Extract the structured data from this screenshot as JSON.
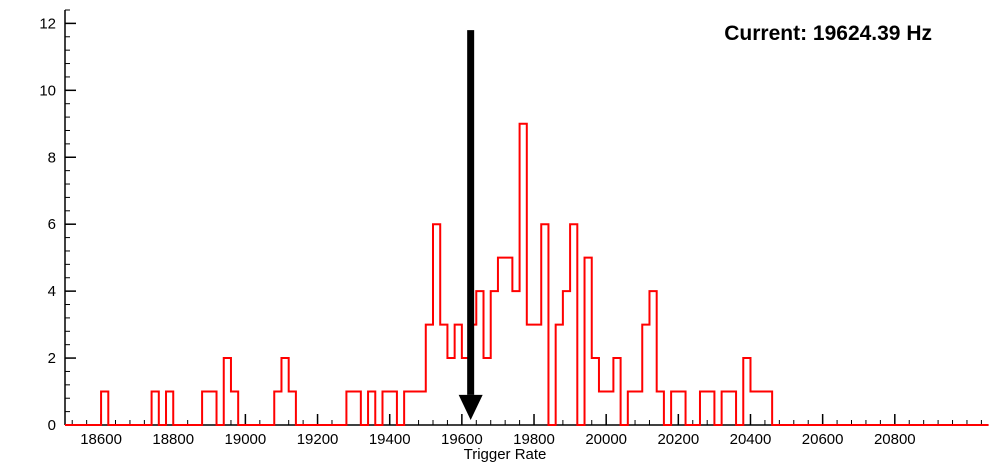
{
  "annotation": {
    "text": "Current: 19624.39 Hz"
  },
  "chart_data": {
    "type": "bar",
    "subtype": "step-histogram",
    "title": "",
    "xlabel": "Trigger Rate",
    "ylabel": "",
    "x_range": [
      18500,
      21050
    ],
    "y_range": [
      0,
      12.4
    ],
    "x_major_ticks": [
      18600,
      18800,
      19000,
      19200,
      19400,
      19600,
      19800,
      20000,
      20200,
      20400,
      20600,
      20800
    ],
    "x_minor_step": 40,
    "y_major_ticks": [
      0,
      2,
      4,
      6,
      8,
      10,
      12
    ],
    "y_minor_step": 0.4,
    "grid": "off",
    "legend": "none",
    "bin_width": 20,
    "bins": [
      [
        18600,
        1
      ],
      [
        18740,
        1
      ],
      [
        18780,
        1
      ],
      [
        18880,
        1
      ],
      [
        18900,
        1
      ],
      [
        18940,
        2
      ],
      [
        18960,
        1
      ],
      [
        19080,
        1
      ],
      [
        19100,
        2
      ],
      [
        19120,
        1
      ],
      [
        19280,
        1
      ],
      [
        19300,
        1
      ],
      [
        19340,
        1
      ],
      [
        19380,
        1
      ],
      [
        19400,
        1
      ],
      [
        19440,
        1
      ],
      [
        19460,
        1
      ],
      [
        19480,
        1
      ],
      [
        19500,
        3
      ],
      [
        19520,
        6
      ],
      [
        19540,
        3
      ],
      [
        19560,
        2
      ],
      [
        19580,
        3
      ],
      [
        19600,
        2
      ],
      [
        19620,
        3
      ],
      [
        19640,
        4
      ],
      [
        19660,
        2
      ],
      [
        19680,
        4
      ],
      [
        19700,
        5
      ],
      [
        19720,
        5
      ],
      [
        19740,
        4
      ],
      [
        19760,
        9
      ],
      [
        19780,
        3
      ],
      [
        19800,
        3
      ],
      [
        19820,
        6
      ],
      [
        19860,
        3
      ],
      [
        19880,
        4
      ],
      [
        19900,
        6
      ],
      [
        19940,
        5
      ],
      [
        19960,
        2
      ],
      [
        19980,
        1
      ],
      [
        20000,
        1
      ],
      [
        20020,
        2
      ],
      [
        20060,
        1
      ],
      [
        20080,
        1
      ],
      [
        20100,
        3
      ],
      [
        20120,
        4
      ],
      [
        20140,
        1
      ],
      [
        20180,
        1
      ],
      [
        20200,
        1
      ],
      [
        20260,
        1
      ],
      [
        20280,
        1
      ],
      [
        20320,
        1
      ],
      [
        20340,
        1
      ],
      [
        20380,
        2
      ],
      [
        20400,
        1
      ],
      [
        20420,
        1
      ],
      [
        20440,
        1
      ]
    ],
    "line_color": "#ff0000",
    "axis_color": "#000000",
    "arrow": {
      "x_value": 19624.39,
      "color": "#000000"
    }
  }
}
